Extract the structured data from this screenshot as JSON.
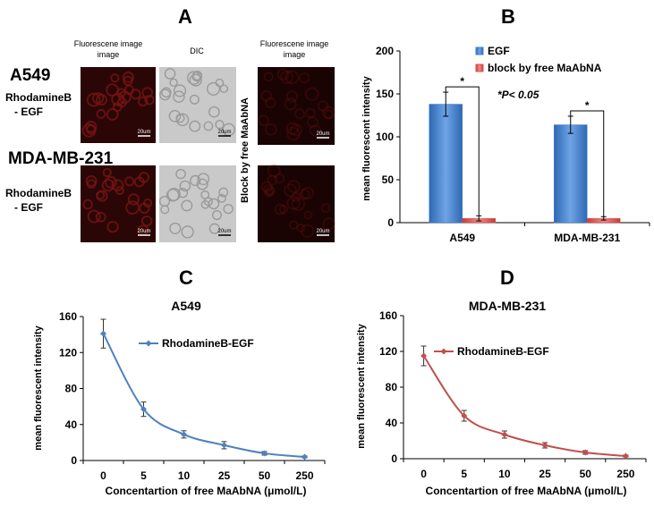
{
  "panels": {
    "a_label": "A",
    "b_label": "B",
    "c_label": "C",
    "d_label": "D"
  },
  "microscopy": {
    "col_headers": [
      "Fluorescene image",
      "DIC",
      "Fluorescene image"
    ],
    "row1_cell": "A549",
    "row2_cell": "MDA-MB-231",
    "probe_label": [
      "RhodamineB",
      "- EGF"
    ],
    "block_label": "Block by free MaAbNA",
    "scale_bar": "20um",
    "colors": {
      "fluor": "#2a0606",
      "fluor_cell": "#7a1414",
      "dic": "#c9c9c9",
      "dic_cell": "#9a9a9a"
    }
  },
  "chart_data": [
    {
      "id": "B",
      "type": "bar",
      "categories": [
        "A549",
        "MDA-MB-231"
      ],
      "series": [
        {
          "name": "EGF",
          "values": [
            138,
            114
          ],
          "errors": [
            14,
            10
          ],
          "color": "#3e7fcf"
        },
        {
          "name": "block by free MaAbNA",
          "values": [
            5,
            5
          ],
          "errors": [
            3,
            2
          ],
          "color": "#e0504d"
        }
      ],
      "ylabel": "mean fluorescent intensity",
      "ylim": [
        0,
        200
      ],
      "yticks": [
        0,
        50,
        100,
        150,
        200
      ],
      "significance": [
        "*",
        "*"
      ],
      "annotation": "*P< 0.05",
      "legend_position": "top-right"
    },
    {
      "id": "C",
      "type": "line",
      "title": "A549",
      "categories": [
        "0",
        "5",
        "10",
        "25",
        "50",
        "250"
      ],
      "series": [
        {
          "name": "RhodamineB-EGF",
          "values": [
            141,
            57,
            29,
            17,
            8,
            4
          ],
          "errors": [
            16,
            8,
            4,
            4,
            2,
            1
          ],
          "color": "#4f81bd"
        }
      ],
      "xlabel": "Concentartion of free MaAbNA (μmol/L)",
      "ylabel": "mean fluorescent intensity",
      "ylim": [
        0,
        160
      ],
      "yticks": [
        0,
        40,
        80,
        120,
        160
      ],
      "legend_position": "center-right"
    },
    {
      "id": "D",
      "type": "line",
      "title": "MDA-MB-231",
      "categories": [
        "0",
        "5",
        "10",
        "25",
        "50",
        "250"
      ],
      "series": [
        {
          "name": "RhodamineB-EGF",
          "values": [
            115,
            48,
            27,
            15,
            7,
            3
          ],
          "errors": [
            11,
            6,
            4,
            3,
            2,
            1
          ],
          "color": "#c0504d"
        }
      ],
      "xlabel": "Concentartion of free MaAbNA (μmol/L)",
      "ylabel": "mean fluorescent intensity",
      "ylim": [
        0,
        160
      ],
      "yticks": [
        0,
        40,
        80,
        120,
        160
      ],
      "legend_position": "top-right"
    }
  ]
}
